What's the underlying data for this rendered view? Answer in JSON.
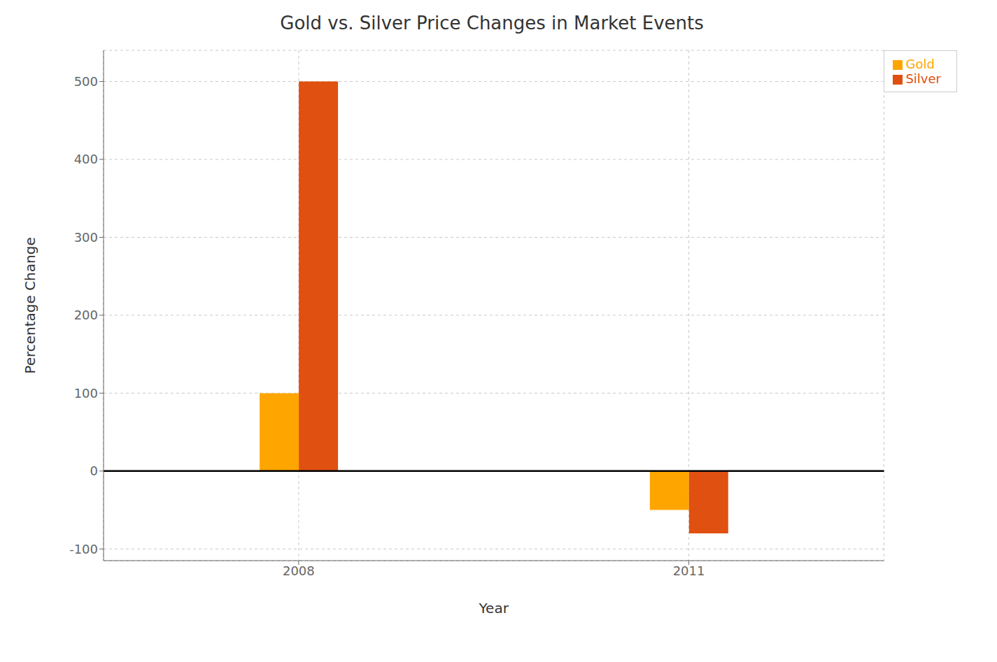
{
  "chart_data": {
    "type": "bar",
    "title": "Gold vs. Silver Price Changes in Market Events",
    "xlabel": "Year",
    "ylabel": "Percentage Change",
    "categories": [
      "2008",
      "2011"
    ],
    "series": [
      {
        "name": "Gold",
        "color": "#FFA500",
        "values": [
          100,
          -50
        ]
      },
      {
        "name": "Silver",
        "color": "#E05010",
        "values": [
          500,
          -80
        ]
      }
    ],
    "ylim": [
      -115,
      540
    ],
    "yticks": [
      -100,
      0,
      100,
      200,
      300,
      400,
      500
    ],
    "grid": true,
    "legend": "upper right"
  }
}
